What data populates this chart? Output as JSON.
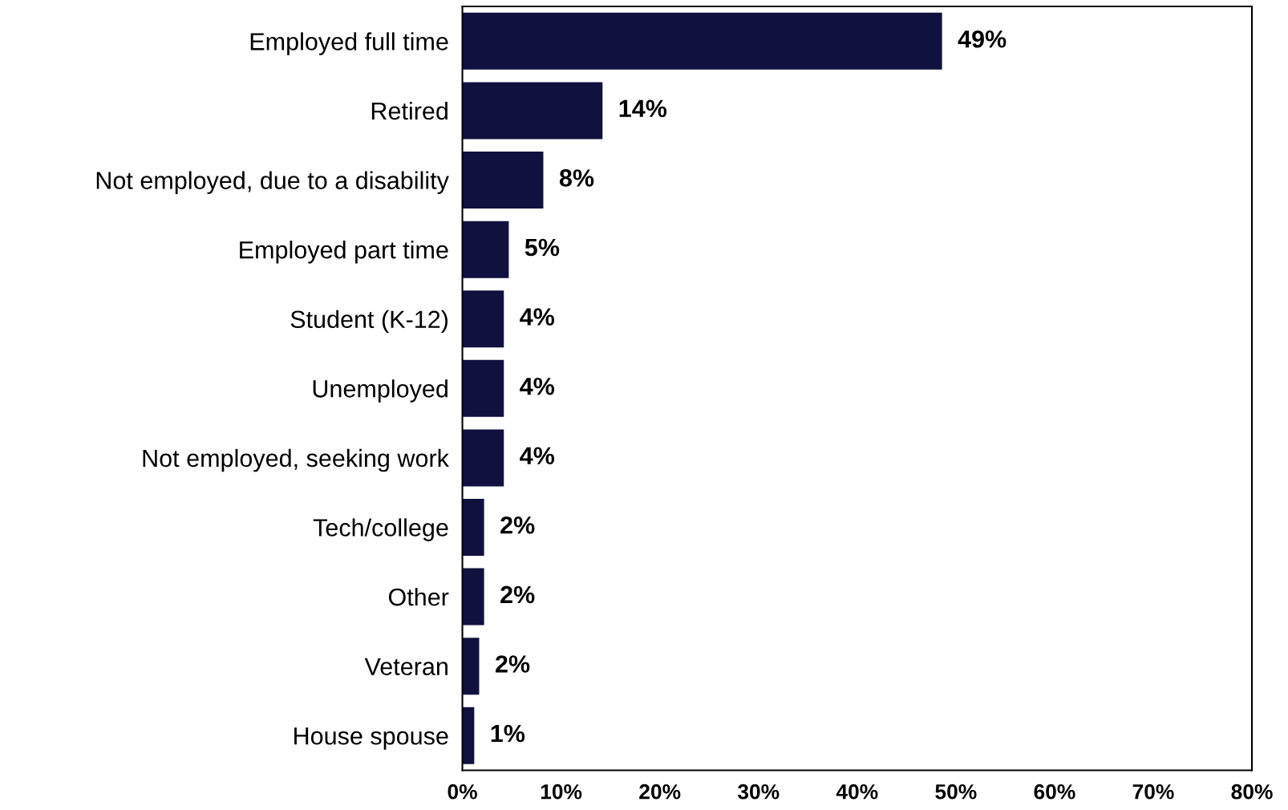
{
  "chart_data": {
    "type": "bar",
    "orientation": "horizontal",
    "categories": [
      "Employed full time",
      "Retired",
      "Not employed, due to a disability",
      "Employed part time",
      "Student (K-12)",
      "Unemployed",
      "Not employed, seeking work",
      "Tech/college",
      "Other",
      "Veteran",
      "House spouse"
    ],
    "values": [
      48.6,
      14.2,
      8.2,
      4.7,
      4.2,
      4.2,
      4.2,
      2.2,
      2.2,
      1.7,
      1.2
    ],
    "value_labels": [
      "49%",
      "14%",
      "8%",
      "5%",
      "4%",
      "4%",
      "4%",
      "2%",
      "2%",
      "2%",
      "1%"
    ],
    "color": "#111140",
    "xlim": [
      0,
      80
    ],
    "xticks": [
      {
        "value": 0,
        "label": "0%"
      },
      {
        "value": 10,
        "label": "10%"
      },
      {
        "value": 20,
        "label": "20%"
      },
      {
        "value": 30,
        "label": "30%"
      },
      {
        "value": 40,
        "label": "40%"
      },
      {
        "value": 50,
        "label": "50%"
      },
      {
        "value": 60,
        "label": "60%"
      },
      {
        "value": 70,
        "label": "70%"
      },
      {
        "value": 80,
        "label": "80%"
      }
    ],
    "grid": false,
    "legend": false
  }
}
